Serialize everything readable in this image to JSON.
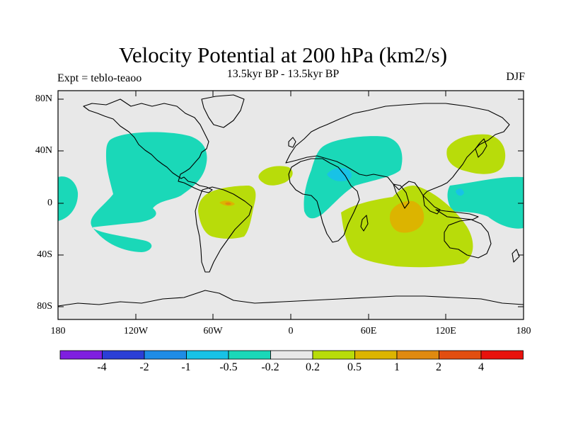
{
  "title": "Velocity Potential at 200 hPa (km2/s)",
  "subtitle": "13.5kyr BP - 13.5kyr BP",
  "left_label": "Expt = teblo-teaoo",
  "right_label": "DJF",
  "lat_ticks": [
    "80N",
    "40N",
    "0",
    "40S",
    "80S"
  ],
  "lon_ticks": [
    "180",
    "120W",
    "60W",
    "0",
    "60E",
    "120E",
    "180"
  ],
  "colorbar": {
    "colors": [
      "#7f1fe0",
      "#2b3fd6",
      "#1e8ce6",
      "#18c2e6",
      "#1ad8b8",
      "#e8e8e8",
      "#b8dc0a",
      "#dcb400",
      "#e08a10",
      "#e24e10",
      "#e8120c"
    ],
    "labels": [
      "-4",
      "-2",
      "-1",
      "-0.5",
      "-0.2",
      "0.2",
      "0.5",
      "1",
      "2",
      "4"
    ]
  },
  "colors": {
    "background_map": "#e8e8e8",
    "negative_fill": "#1ad8b8",
    "positive_fill": "#b8dc0a",
    "strong_positive_fill": "#dcb400",
    "strong_negative_fill": "#18c2e6",
    "extreme_positive_fill": "#e08a10"
  }
}
